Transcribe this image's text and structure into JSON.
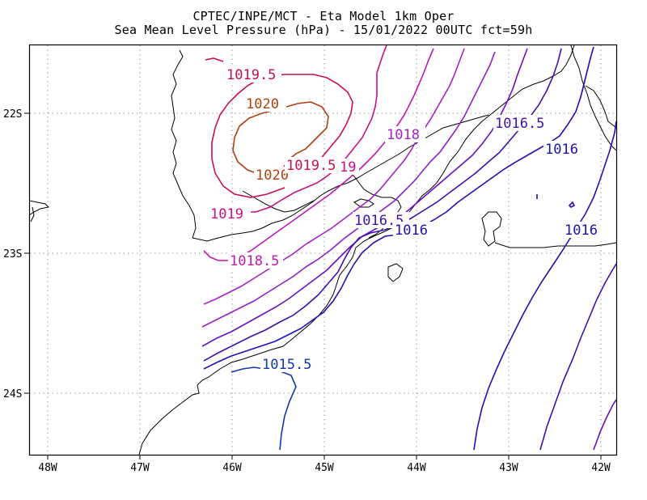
{
  "header": {
    "line1": "CPTEC/INPE/MCT -  Eta Model 1km Oper",
    "line2": "Sea Mean Level Pressure (hPa) - 15/01/2022 00UTC fct=59h"
  },
  "axes": {
    "x_ticks": [
      "48W",
      "47W",
      "46W",
      "45W",
      "44W",
      "43W",
      "42W"
    ],
    "y_ticks": [
      "22S",
      "23S",
      "24S"
    ]
  },
  "contour_labels": {
    "l_1019_5_a": "1019.5",
    "l_1020_a": "1020",
    "l_1020_b": "1020",
    "l_1019_5_b": "1019.5",
    "l_1019_a": "19",
    "l_1019_b": "1019",
    "l_1018_5": "1018.5",
    "l_1018": "1018",
    "l_1016_5_a": "1016.5",
    "l_1016_5_b": "1016.5",
    "l_1016_a": "1016",
    "l_1016_b": "1016",
    "l_1016_c": "1016",
    "l_1015_5": "1015.5"
  },
  "colors": {
    "c1020": "#b04010",
    "c1019_5": "#c8104a",
    "c1019": "#c81088",
    "c1018_5": "#c018b0",
    "c1018": "#a820c8",
    "c1017_5": "#8c20c8",
    "c1017": "#6a10c0",
    "c1016_5": "#4010b0",
    "c1016": "#2010b0",
    "c1015_5": "#1038b0"
  }
}
